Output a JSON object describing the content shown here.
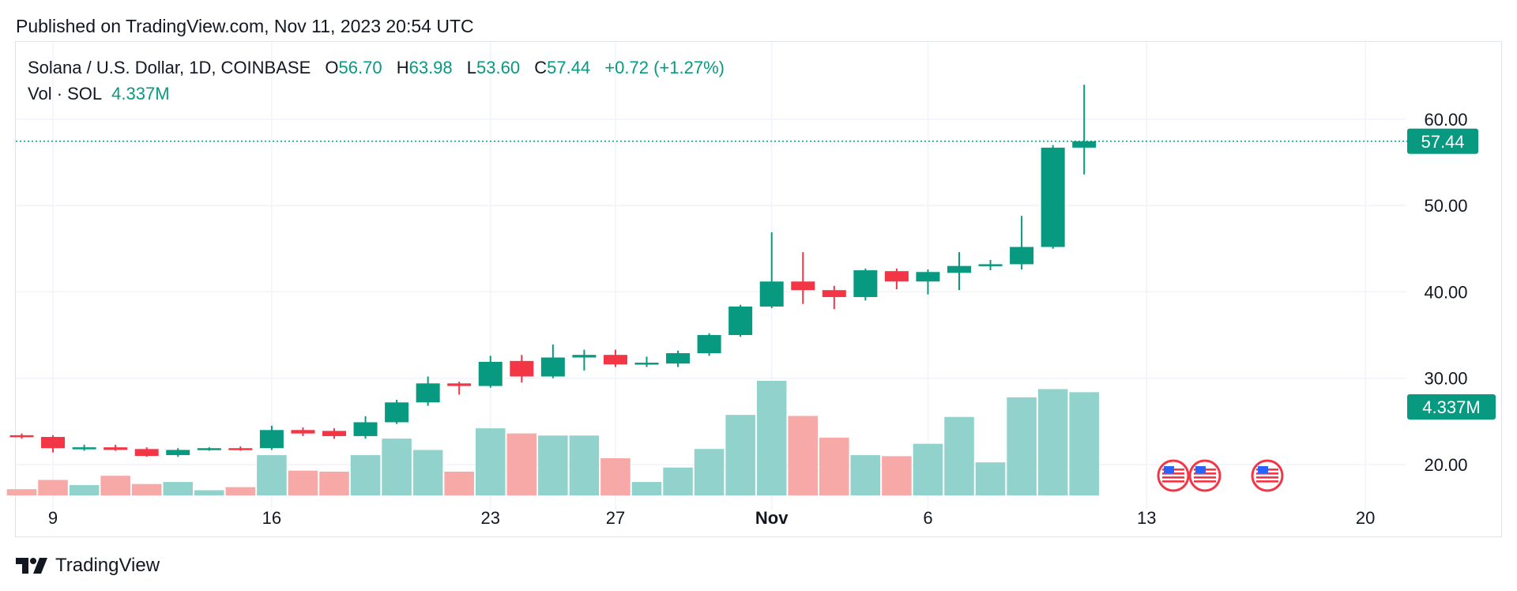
{
  "header": {
    "published": "Published on TradingView.com, Nov 11, 2023 20:54 UTC"
  },
  "legend": {
    "symbol": "Solana / U.S. Dollar, 1D, COINBASE",
    "o_label": "O",
    "o": "56.70",
    "h_label": "H",
    "h": "63.98",
    "l_label": "L",
    "l": "53.60",
    "c_label": "C",
    "c": "57.44",
    "change": "+0.72 (+1.27%)",
    "vol_label": "Vol · SOL",
    "vol": "4.337M"
  },
  "footer": {
    "brand": "TradingView"
  },
  "colors": {
    "up": "#089981",
    "down": "#f23645",
    "vol_up": "#92d2cc",
    "vol_down": "#f7a9a7",
    "grid": "#f0f3fa"
  },
  "chart_data": {
    "type": "candlestick",
    "title": "Solana / U.S. Dollar, 1D, COINBASE",
    "x_tick_labels": [
      "9",
      "16",
      "23",
      "27",
      "Nov",
      "6",
      "13",
      "20"
    ],
    "y_tick_labels": [
      "60.00",
      "50.00",
      "40.00",
      "30.00",
      "20.00"
    ],
    "ylim": [
      15,
      67
    ],
    "last_price_label": "57.44",
    "last_volume_label": "4.337M",
    "event_markers": [
      "us-flag",
      "us-flag",
      "us-flag"
    ],
    "series": [
      {
        "date": "Oct 8",
        "open": 23.4,
        "high": 23.6,
        "low": 23.0,
        "close": 23.2,
        "volume": 0.6
      },
      {
        "date": "Oct 9",
        "open": 23.2,
        "high": 23.4,
        "low": 21.4,
        "close": 21.9,
        "volume": 1.5
      },
      {
        "date": "Oct 10",
        "open": 21.9,
        "high": 22.3,
        "low": 21.6,
        "close": 22.0,
        "volume": 1.0
      },
      {
        "date": "Oct 11",
        "open": 22.0,
        "high": 22.3,
        "low": 21.6,
        "close": 21.7,
        "volume": 1.9
      },
      {
        "date": "Oct 12",
        "open": 21.8,
        "high": 22.0,
        "low": 20.9,
        "close": 21.0,
        "volume": 1.1
      },
      {
        "date": "Oct 13",
        "open": 21.1,
        "high": 21.9,
        "low": 20.9,
        "close": 21.7,
        "volume": 1.3
      },
      {
        "date": "Oct 14",
        "open": 21.7,
        "high": 22.0,
        "low": 21.6,
        "close": 21.9,
        "volume": 0.5
      },
      {
        "date": "Oct 15",
        "open": 21.9,
        "high": 22.1,
        "low": 21.6,
        "close": 21.7,
        "volume": 0.8
      },
      {
        "date": "Oct 16",
        "open": 21.9,
        "high": 24.5,
        "low": 21.7,
        "close": 24.0,
        "volume": 3.9
      },
      {
        "date": "Oct 17",
        "open": 24.0,
        "high": 24.3,
        "low": 23.3,
        "close": 23.6,
        "volume": 2.4
      },
      {
        "date": "Oct 18",
        "open": 23.9,
        "high": 24.2,
        "low": 23.0,
        "close": 23.3,
        "volume": 2.3
      },
      {
        "date": "Oct 19",
        "open": 23.3,
        "high": 25.6,
        "low": 23.0,
        "close": 24.9,
        "volume": 3.9
      },
      {
        "date": "Oct 20",
        "open": 24.9,
        "high": 27.5,
        "low": 24.7,
        "close": 27.2,
        "volume": 5.5
      },
      {
        "date": "Oct 21",
        "open": 27.2,
        "high": 30.2,
        "low": 26.8,
        "close": 29.4,
        "volume": 4.4
      },
      {
        "date": "Oct 22",
        "open": 29.4,
        "high": 29.6,
        "low": 28.1,
        "close": 29.1,
        "volume": 2.3
      },
      {
        "date": "Oct 23",
        "open": 29.1,
        "high": 32.6,
        "low": 28.9,
        "close": 31.9,
        "volume": 6.5
      },
      {
        "date": "Oct 24",
        "open": 32.0,
        "high": 32.7,
        "low": 29.5,
        "close": 30.2,
        "volume": 6.0
      },
      {
        "date": "Oct 25",
        "open": 30.2,
        "high": 33.9,
        "low": 30.0,
        "close": 32.4,
        "volume": 5.8
      },
      {
        "date": "Oct 26",
        "open": 32.4,
        "high": 33.3,
        "low": 30.9,
        "close": 32.7,
        "volume": 5.8
      },
      {
        "date": "Oct 27",
        "open": 32.7,
        "high": 33.3,
        "low": 31.3,
        "close": 31.6,
        "volume": 3.6
      },
      {
        "date": "Oct 28",
        "open": 31.6,
        "high": 32.5,
        "low": 31.3,
        "close": 31.8,
        "volume": 1.3
      },
      {
        "date": "Oct 29",
        "open": 31.7,
        "high": 33.2,
        "low": 31.3,
        "close": 32.9,
        "volume": 2.7
      },
      {
        "date": "Oct 30",
        "open": 32.9,
        "high": 35.2,
        "low": 32.6,
        "close": 35.0,
        "volume": 4.5
      },
      {
        "date": "Oct 31",
        "open": 35.0,
        "high": 38.5,
        "low": 34.8,
        "close": 38.3,
        "volume": 7.8
      },
      {
        "date": "Nov 1",
        "open": 38.3,
        "high": 46.9,
        "low": 38.1,
        "close": 41.2,
        "volume": 11.1
      },
      {
        "date": "Nov 2",
        "open": 41.2,
        "high": 44.6,
        "low": 38.6,
        "close": 40.2,
        "volume": 7.7
      },
      {
        "date": "Nov 3",
        "open": 40.2,
        "high": 40.7,
        "low": 38.0,
        "close": 39.4,
        "volume": 5.6
      },
      {
        "date": "Nov 4",
        "open": 39.4,
        "high": 42.7,
        "low": 39.0,
        "close": 42.5,
        "volume": 3.9
      },
      {
        "date": "Nov 5",
        "open": 42.4,
        "high": 42.7,
        "low": 40.3,
        "close": 41.2,
        "volume": 3.8
      },
      {
        "date": "Nov 6",
        "open": 41.2,
        "high": 42.6,
        "low": 39.7,
        "close": 42.3,
        "volume": 5.0
      },
      {
        "date": "Nov 7",
        "open": 42.2,
        "high": 44.6,
        "low": 40.2,
        "close": 43.0,
        "volume": 7.6
      },
      {
        "date": "Nov 8",
        "open": 43.0,
        "high": 43.7,
        "low": 42.5,
        "close": 43.2,
        "volume": 3.2
      },
      {
        "date": "Nov 9",
        "open": 43.2,
        "high": 48.8,
        "low": 42.6,
        "close": 45.2,
        "volume": 9.5
      },
      {
        "date": "Nov 10",
        "open": 45.2,
        "high": 57.0,
        "low": 45.0,
        "close": 56.7,
        "volume": 10.3
      },
      {
        "date": "Nov 11",
        "open": 56.7,
        "high": 63.98,
        "low": 53.6,
        "close": 57.44,
        "volume": 10.0
      }
    ]
  }
}
